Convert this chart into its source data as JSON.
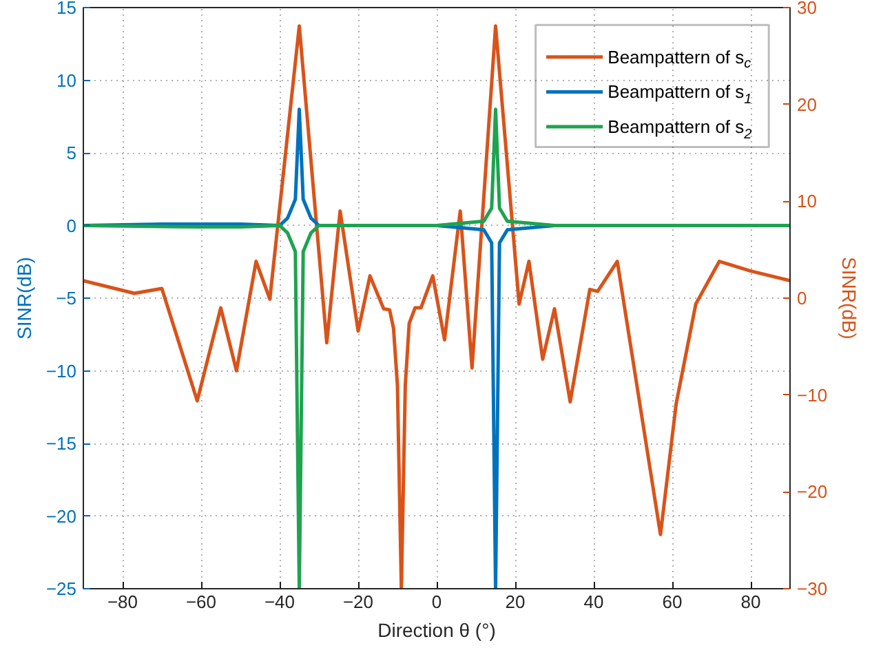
{
  "chart_data": {
    "type": "line",
    "xlabel": "Direction θ (°)",
    "ylabel": "SINR(dB)",
    "y2label": "SINR(dB)",
    "xlim": [
      -90,
      90
    ],
    "xticks": [
      -80,
      -60,
      -40,
      -20,
      0,
      20,
      40,
      60,
      80
    ],
    "ylim": [
      -25,
      15
    ],
    "yticks": [
      -25,
      -20,
      -15,
      -10,
      -5,
      0,
      5,
      10,
      15
    ],
    "y2lim": [
      -30,
      30
    ],
    "y2ticks": [
      -30,
      -20,
      -10,
      0,
      10,
      20,
      30
    ],
    "grid": true,
    "legend": "top right",
    "line_style": "solid",
    "marker": "none",
    "series": [
      {
        "name": "Beampattern of s$_{c}$",
        "color": "#d95319",
        "axis": "y2",
        "x": [
          -90,
          -77,
          -70,
          -61,
          -55,
          -51,
          -46,
          -42.5,
          -35,
          -28,
          -24.6,
          -20,
          -17,
          -13.5,
          -12,
          -11,
          -10,
          -9,
          -8,
          -7,
          -5.5,
          -4,
          -1,
          2,
          6,
          9,
          15,
          21,
          23.5,
          27,
          30,
          34,
          39,
          41,
          46,
          57,
          61,
          66,
          72,
          80,
          90
        ],
        "values": [
          1.8,
          0.5,
          1.0,
          -10.6,
          -1.0,
          -7.5,
          3.8,
          -0.1,
          28.1,
          -4.6,
          9.0,
          -3.4,
          2.3,
          -1.1,
          -1.2,
          -3.1,
          -9,
          -30,
          -9,
          -2.6,
          -1.0,
          -1.0,
          2.3,
          -4.3,
          9.0,
          -7.2,
          28.1,
          -0.6,
          3.8,
          -6.3,
          -1.1,
          -10.7,
          0.9,
          0.7,
          3.8,
          -24.4,
          -10.9,
          -0.6,
          3.8,
          2.8,
          1.8
        ]
      },
      {
        "name": "Beampattern of s$_{1}$",
        "color": "#0072bd",
        "x": [
          -90,
          -70,
          -50,
          -40,
          -38,
          -36,
          -35,
          -34,
          -32,
          -30,
          0,
          12,
          14,
          15,
          16,
          18,
          30,
          50,
          90
        ],
        "values": [
          0,
          0.1,
          0.1,
          0,
          0.5,
          1.8,
          8,
          1.8,
          0.5,
          0,
          0,
          -0.3,
          -1.2,
          -25,
          -1.2,
          -0.3,
          0,
          0,
          0
        ]
      },
      {
        "name": "Beampattern of s$_{2}$",
        "color": "#1ea34f",
        "x": [
          -90,
          -60,
          -50,
          -40,
          -38,
          -36,
          -35,
          -34,
          -32,
          -30,
          0,
          12,
          14,
          15,
          16,
          18,
          30,
          60,
          90
        ],
        "values": [
          0,
          -0.1,
          -0.1,
          0,
          -0.5,
          -1.8,
          -25,
          -1.8,
          -0.5,
          0,
          0,
          0.3,
          1.2,
          8,
          1.2,
          0.3,
          0,
          0,
          0
        ]
      }
    ]
  }
}
